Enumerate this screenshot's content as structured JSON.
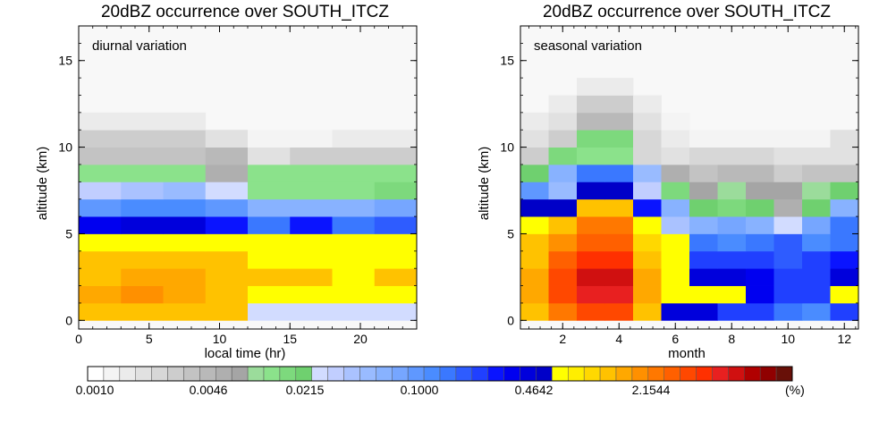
{
  "chart_data": [
    {
      "type": "heatmap",
      "title": "20dBZ occurrence over SOUTH_ITCZ",
      "annotation": "diurnal variation",
      "xlabel": "local time (hr)",
      "ylabel": "altitude (km)",
      "xlim": [
        0,
        24
      ],
      "ylim": [
        -0.5,
        17
      ],
      "xticks": [
        0,
        5,
        10,
        15,
        20
      ],
      "yticks": [
        0,
        5,
        10,
        15
      ],
      "x_bin_edges": [
        0,
        3,
        6,
        9,
        12,
        15,
        18,
        21,
        24
      ],
      "y_bin_edges": [
        0,
        1,
        2,
        3,
        4,
        5,
        6,
        7,
        8,
        9,
        10,
        11,
        12
      ],
      "color_index_grid": [
        [
          32,
          32,
          32,
          32,
          14,
          14,
          14,
          14
        ],
        [
          33,
          34,
          33,
          32,
          29,
          29,
          29,
          29
        ],
        [
          32,
          33,
          33,
          32,
          32,
          32,
          29,
          32
        ],
        [
          32,
          32,
          32,
          32,
          29,
          29,
          29,
          29
        ],
        [
          29,
          29,
          29,
          29,
          29,
          29,
          29,
          29
        ],
        [
          26,
          27,
          27,
          25,
          22,
          25,
          22,
          23
        ],
        [
          20,
          21,
          21,
          20,
          18,
          18,
          18,
          19
        ],
        [
          15,
          16,
          17,
          14,
          11,
          11,
          11,
          12
        ],
        [
          11,
          11,
          11,
          8,
          11,
          11,
          11,
          11
        ],
        [
          6,
          6,
          6,
          7,
          3,
          5,
          5,
          5
        ],
        [
          5,
          5,
          5,
          3,
          1,
          1,
          2,
          2
        ],
        [
          2,
          2,
          2,
          0,
          0,
          0,
          0,
          0
        ],
        [
          0,
          0,
          0,
          0,
          0,
          0,
          0,
          0
        ]
      ]
    },
    {
      "type": "heatmap",
      "title": "20dBZ occurrence over SOUTH_ITCZ",
      "annotation": "seasonal variation",
      "xlabel": "month",
      "ylabel": "altitude (km)",
      "xlim": [
        0.5,
        12.5
      ],
      "ylim": [
        -0.5,
        17
      ],
      "xticks": [
        2,
        4,
        6,
        8,
        10,
        12
      ],
      "yticks": [
        0,
        5,
        10,
        15
      ],
      "x_bin_edges": [
        0.5,
        1.5,
        2.5,
        3.5,
        4.5,
        5.5,
        6.5,
        7.5,
        8.5,
        9.5,
        10.5,
        11.5,
        12.5
      ],
      "y_bin_edges": [
        0,
        1,
        2,
        3,
        4,
        5,
        6,
        7,
        8,
        9,
        10,
        11,
        12,
        13,
        14
      ],
      "color_index_grid": [
        [
          32,
          35,
          37,
          37,
          32,
          27,
          27,
          24,
          24,
          22,
          21,
          24
        ],
        [
          33,
          37,
          39,
          39,
          33,
          29,
          29,
          29,
          26,
          24,
          24,
          29
        ],
        [
          33,
          37,
          40,
          40,
          33,
          29,
          27,
          27,
          26,
          24,
          24,
          27
        ],
        [
          32,
          36,
          38,
          38,
          32,
          29,
          24,
          24,
          24,
          23,
          24,
          25
        ],
        [
          32,
          34,
          36,
          36,
          31,
          29,
          22,
          21,
          22,
          23,
          21,
          22
        ],
        [
          29,
          32,
          35,
          35,
          29,
          16,
          18,
          19,
          18,
          14,
          19,
          22
        ],
        [
          28,
          28,
          32,
          32,
          25,
          18,
          13,
          12,
          13,
          8,
          13,
          18
        ],
        [
          20,
          17,
          28,
          28,
          15,
          12,
          9,
          10,
          9,
          9,
          10,
          13
        ],
        [
          13,
          18,
          22,
          22,
          17,
          8,
          6,
          7,
          7,
          5,
          6,
          6
        ],
        [
          5,
          12,
          11,
          11,
          4,
          3,
          4,
          4,
          4,
          3,
          3,
          3
        ],
        [
          3,
          5,
          12,
          12,
          4,
          2,
          1,
          1,
          1,
          1,
          1,
          3
        ],
        [
          2,
          3,
          7,
          7,
          3,
          1,
          0,
          0,
          0,
          0,
          0,
          0
        ],
        [
          0,
          2,
          5,
          5,
          2,
          0,
          0,
          0,
          0,
          0,
          0,
          0
        ],
        [
          0,
          0,
          2,
          2,
          0,
          0,
          0,
          0,
          0,
          0,
          0,
          0
        ]
      ]
    }
  ],
  "colorbar": {
    "tick_labels": [
      "0.0010",
      "0.0046",
      "0.0215",
      "0.1000",
      "0.4642",
      "2.1544"
    ],
    "unit": "(%)",
    "colors": [
      "#ffffff",
      "#f4f4f4",
      "#ebebeb",
      "#e1e1e1",
      "#d7d7d7",
      "#cdcdcd",
      "#c3c3c3",
      "#b9b9b9",
      "#afafaf",
      "#a5a5a5",
      "#9bdc9b",
      "#8be28b",
      "#7dd97d",
      "#6fd06f",
      "#d2dcff",
      "#c1ceff",
      "#aac2ff",
      "#99bbff",
      "#88b2ff",
      "#76a6ff",
      "#5f98ff",
      "#4a8cff",
      "#3a78ff",
      "#2e5cff",
      "#2040ff",
      "#0a14ff",
      "#0000f0",
      "#0000dc",
      "#0000c8",
      "#ffff00",
      "#ffee00",
      "#ffd800",
      "#ffc200",
      "#ffa800",
      "#ff9000",
      "#ff7800",
      "#ff6000",
      "#ff4800",
      "#ff3000",
      "#e82020",
      "#d01010",
      "#b00000",
      "#900000",
      "#681008"
    ],
    "na_color": "#f8f8f8"
  }
}
